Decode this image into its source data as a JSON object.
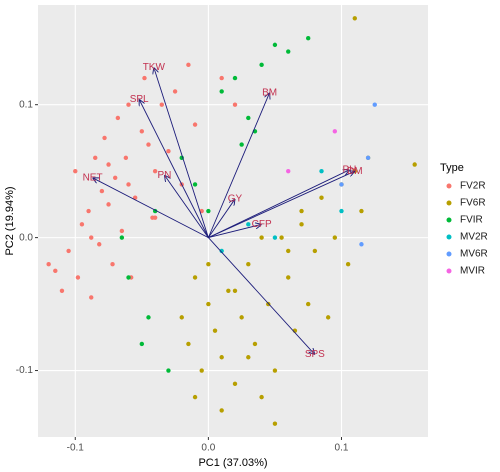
{
  "chart_data": {
    "type": "biplot",
    "x_label": "PC1 (37.03%)",
    "y_label": "PC2 (19.94%)",
    "legend_title": "Type",
    "xlim": [
      -0.128,
      0.165
    ],
    "ylim": [
      -0.15,
      0.175
    ],
    "xticks": [
      -0.1,
      {
        "value": 0,
        "label": "0.0"
      },
      0.1
    ],
    "yticks": [
      -0.1,
      {
        "value": 0,
        "label": "0.0"
      },
      0.1
    ],
    "grid": true,
    "series": [
      {
        "name": "FV2R",
        "color": "#F8766D",
        "x": [
          -0.12,
          -0.115,
          -0.11,
          -0.105,
          -0.1,
          -0.098,
          -0.095,
          -0.09,
          -0.088,
          -0.085,
          -0.082,
          -0.08,
          -0.078,
          -0.075,
          -0.072,
          -0.07,
          -0.068,
          -0.065,
          -0.062,
          -0.06,
          -0.058,
          -0.055,
          -0.05,
          -0.048,
          -0.045,
          -0.042,
          -0.04,
          -0.035,
          -0.03,
          -0.025,
          -0.02,
          -0.015,
          -0.01,
          -0.005,
          0.01,
          0.02,
          -0.088,
          -0.075,
          -0.06,
          -0.04
        ],
        "values": [
          -0.02,
          -0.025,
          -0.04,
          -0.01,
          0.05,
          -0.03,
          0.01,
          0.02,
          -0.045,
          0.06,
          -0.005,
          0.035,
          0.075,
          0.025,
          -0.02,
          0.045,
          0.09,
          0.005,
          0.06,
          0.1,
          -0.03,
          0.03,
          0.08,
          0.12,
          0.07,
          0.015,
          0.05,
          0.1,
          0.065,
          0.11,
          0.04,
          0.13,
          0.085,
          0.02,
          0.12,
          0.1,
          0.0,
          0.055,
          0.04,
          0.015
        ]
      },
      {
        "name": "FV6R",
        "color": "#B79F00",
        "x": [
          -0.02,
          -0.015,
          -0.01,
          -0.005,
          0.0,
          0.005,
          0.01,
          0.015,
          0.02,
          0.025,
          0.03,
          0.035,
          0.04,
          0.045,
          0.05,
          0.055,
          0.06,
          0.065,
          0.07,
          0.075,
          0.08,
          0.085,
          0.09,
          0.095,
          0.1,
          0.105,
          0.11,
          0.115,
          0.12,
          0.155,
          -0.01,
          0.01,
          0.03,
          0.05,
          0.07,
          0.0,
          0.02,
          0.04,
          0.06,
          0.11
        ],
        "values": [
          -0.06,
          -0.08,
          -0.03,
          -0.1,
          -0.05,
          -0.07,
          -0.09,
          -0.04,
          -0.11,
          -0.06,
          -0.02,
          -0.08,
          -0.12,
          -0.05,
          -0.1,
          0.0,
          -0.03,
          -0.07,
          0.02,
          -0.05,
          -0.01,
          0.03,
          -0.06,
          0.0,
          0.04,
          -0.02,
          0.05,
          0.02,
          0.06,
          0.055,
          -0.12,
          -0.13,
          -0.09,
          -0.14,
          0.01,
          -0.02,
          -0.04,
          0.0,
          -0.01,
          0.165
        ]
      },
      {
        "name": "FVIR",
        "color": "#00BA38",
        "x": [
          -0.06,
          -0.05,
          -0.04,
          -0.03,
          -0.02,
          -0.01,
          0.0,
          0.01,
          0.02,
          0.03,
          0.04,
          0.05,
          0.06,
          0.075,
          -0.065,
          -0.045,
          0.025,
          0.035
        ],
        "values": [
          -0.03,
          -0.08,
          0.02,
          -0.1,
          0.06,
          0.04,
          0.02,
          0.11,
          0.12,
          0.09,
          0.13,
          0.145,
          0.14,
          0.15,
          0.0,
          -0.06,
          0.07,
          0.08
        ]
      },
      {
        "name": "MV2R",
        "color": "#00BFC4",
        "x": [
          0.01,
          0.03,
          0.05,
          0.085,
          0.1
        ],
        "values": [
          -0.01,
          0.01,
          0.0,
          0.05,
          0.02
        ]
      },
      {
        "name": "MV6R",
        "color": "#619CFF",
        "x": [
          0.1,
          0.125,
          0.12,
          0.115
        ],
        "values": [
          0.04,
          0.1,
          0.06,
          -0.005
        ]
      },
      {
        "name": "MVIR",
        "color": "#F564E3",
        "x": [
          0.095,
          0.06
        ],
        "values": [
          0.08,
          0.05
        ]
      }
    ],
    "loadings": [
      {
        "name": "TKW",
        "x": -0.041,
        "y": 0.128
      },
      {
        "name": "SPL",
        "x": -0.052,
        "y": 0.104
      },
      {
        "name": "BM",
        "x": 0.046,
        "y": 0.109
      },
      {
        "name": "NET",
        "x": -0.087,
        "y": 0.045
      },
      {
        "name": "PN",
        "x": -0.033,
        "y": 0.047
      },
      {
        "name": "GY",
        "x": 0.02,
        "y": 0.029
      },
      {
        "name": "CFP",
        "x": 0.04,
        "y": 0.01
      },
      {
        "name": "SPS",
        "x": 0.08,
        "y": -0.088
      },
      {
        "name": "PH",
        "x": 0.106,
        "y": 0.051
      },
      {
        "name": "DM",
        "x": 0.11,
        "y": 0.05
      }
    ]
  }
}
